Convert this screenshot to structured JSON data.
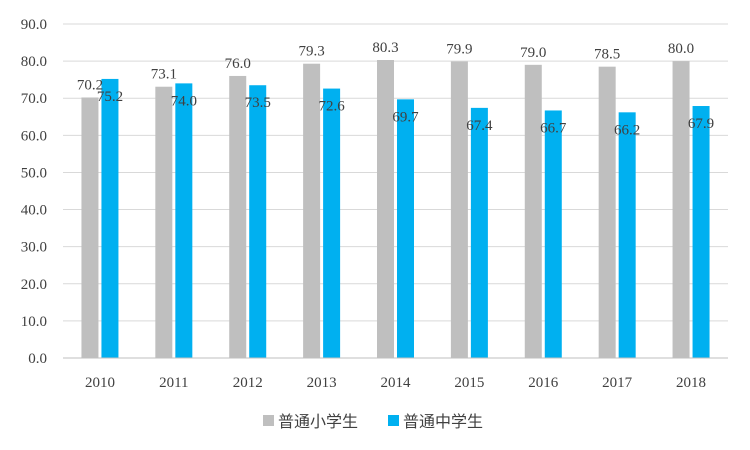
{
  "chart_data": {
    "type": "bar",
    "categories": [
      "2010",
      "2011",
      "2012",
      "2013",
      "2014",
      "2015",
      "2016",
      "2017",
      "2018"
    ],
    "series": [
      {
        "name": "普通小学生",
        "color": "#bfbfbf",
        "values": [
          70.2,
          73.1,
          76.0,
          79.3,
          80.3,
          79.9,
          79.0,
          78.5,
          80.0
        ]
      },
      {
        "name": "普通中学生",
        "color": "#00b0f0",
        "values": [
          75.2,
          74.0,
          73.5,
          72.6,
          69.7,
          67.4,
          66.7,
          66.2,
          67.9
        ]
      }
    ],
    "ylim": [
      0,
      90
    ],
    "yticks": [
      "0.0",
      "10.0",
      "20.0",
      "30.0",
      "40.0",
      "50.0",
      "60.0",
      "70.0",
      "80.0",
      "90.0"
    ],
    "grid": true,
    "legend_position": "bottom",
    "title": "",
    "xlabel": "",
    "ylabel": ""
  }
}
